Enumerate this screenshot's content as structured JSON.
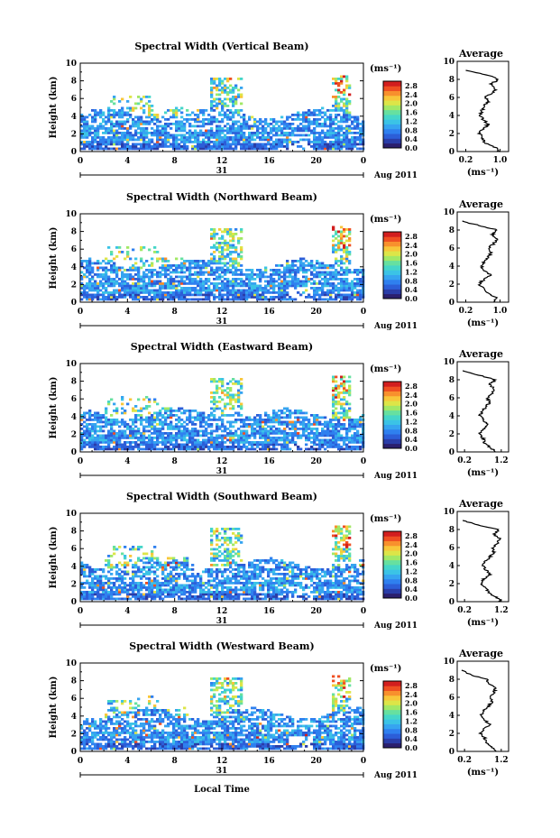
{
  "figure": {
    "xlabel": "Local Time",
    "date_label": "31",
    "month_year_label": "Aug 2011",
    "panel_ylabel": "Height (km)",
    "colorbar_unit": "(ms⁻¹)",
    "average_title": "Average",
    "average_xlabel": "(ms⁻¹)"
  },
  "chart_data": [
    {
      "type": "heatmap",
      "title": "Spectral Width (Vertical Beam)",
      "xlabel": "Local Time",
      "ylabel": "Height (km)",
      "x_ticks": [
        "0",
        "4",
        "8",
        "12",
        "16",
        "20",
        "0"
      ],
      "y_ticks": [
        "0",
        "2",
        "4",
        "6",
        "8",
        "10"
      ],
      "xlim": [
        0,
        24
      ],
      "ylim": [
        0,
        10
      ],
      "colorbar": {
        "label": "(ms⁻¹)",
        "ticks": [
          "0.0",
          "0.4",
          "0.8",
          "1.2",
          "1.6",
          "2.0",
          "2.4",
          "2.8"
        ],
        "range": [
          0,
          3.0
        ]
      },
      "average_profile": {
        "title": "Average",
        "xlabel": "(ms⁻¹)",
        "x_ticks": [
          "0.2",
          "1.0"
        ],
        "xlim": [
          0,
          1.2
        ],
        "heights": [
          0,
          0.5,
          1,
          1.5,
          2,
          2.5,
          3,
          3.5,
          4,
          4.5,
          5,
          5.5,
          6,
          6.5,
          7,
          7.5,
          8,
          8.5,
          9
        ],
        "values": [
          1.0,
          0.88,
          0.62,
          0.6,
          0.52,
          0.6,
          0.72,
          0.62,
          0.52,
          0.58,
          0.6,
          0.72,
          0.66,
          0.82,
          0.9,
          0.8,
          0.95,
          0.7,
          0.2
        ]
      }
    },
    {
      "type": "heatmap",
      "title": "Spectral Width (Northward Beam)",
      "xlabel": "Local Time",
      "ylabel": "Height (km)",
      "x_ticks": [
        "0",
        "4",
        "8",
        "12",
        "16",
        "20",
        "0"
      ],
      "y_ticks": [
        "0",
        "2",
        "4",
        "6",
        "8",
        "10"
      ],
      "xlim": [
        0,
        24
      ],
      "ylim": [
        0,
        10
      ],
      "colorbar": {
        "label": "(ms⁻¹)",
        "ticks": [
          "0.0",
          "0.4",
          "0.8",
          "1.2",
          "1.6",
          "2.0",
          "2.4",
          "2.8"
        ],
        "range": [
          0,
          3.0
        ]
      },
      "average_profile": {
        "title": "Average",
        "xlabel": "(ms⁻¹)",
        "x_ticks": [
          "0.2",
          "1.0"
        ],
        "xlim": [
          0,
          1.2
        ],
        "heights": [
          0,
          0.5,
          1,
          1.5,
          2,
          2.5,
          3,
          3.5,
          4,
          4.5,
          5,
          5.5,
          6,
          6.5,
          7,
          7.5,
          8,
          8.5,
          9
        ],
        "values": [
          0.85,
          0.95,
          0.7,
          0.62,
          0.5,
          0.62,
          0.8,
          0.65,
          0.55,
          0.62,
          0.72,
          0.8,
          0.75,
          0.85,
          0.95,
          0.82,
          0.95,
          0.5,
          0.12
        ]
      }
    },
    {
      "type": "heatmap",
      "title": "Spectral Width (Eastward Beam)",
      "xlabel": "Local Time",
      "ylabel": "Height (km)",
      "x_ticks": [
        "0",
        "4",
        "8",
        "12",
        "16",
        "20",
        "0"
      ],
      "y_ticks": [
        "0",
        "2",
        "4",
        "6",
        "8",
        "10"
      ],
      "xlim": [
        0,
        24
      ],
      "ylim": [
        0,
        10
      ],
      "colorbar": {
        "label": "(ms⁻¹)",
        "ticks": [
          "0.0",
          "0.4",
          "0.8",
          "1.2",
          "1.6",
          "2.0",
          "2.4",
          "2.8"
        ],
        "range": [
          0,
          3.0
        ]
      },
      "average_profile": {
        "title": "Average",
        "xlabel": "(ms⁻¹)",
        "x_ticks": [
          "0.2",
          "1.2"
        ],
        "xlim": [
          0,
          1.4
        ],
        "heights": [
          0,
          0.5,
          1,
          1.5,
          2,
          2.5,
          3,
          3.5,
          4,
          4.5,
          5,
          5.5,
          6,
          6.5,
          7,
          7.5,
          8,
          8.5,
          9
        ],
        "values": [
          1.05,
          0.9,
          0.75,
          0.72,
          0.6,
          0.7,
          0.85,
          0.72,
          0.62,
          0.68,
          0.78,
          0.88,
          0.82,
          0.95,
          1.0,
          0.88,
          1.05,
          0.6,
          0.15
        ]
      }
    },
    {
      "type": "heatmap",
      "title": "Spectral Width (Southward Beam)",
      "xlabel": "Local Time",
      "ylabel": "Height (km)",
      "x_ticks": [
        "0",
        "4",
        "8",
        "12",
        "16",
        "20",
        "0"
      ],
      "y_ticks": [
        "0",
        "2",
        "4",
        "6",
        "8",
        "10"
      ],
      "xlim": [
        0,
        24
      ],
      "ylim": [
        0,
        10
      ],
      "colorbar": {
        "label": "(ms⁻¹)",
        "ticks": [
          "0.0",
          "0.4",
          "0.8",
          "1.2",
          "1.6",
          "2.0",
          "2.4",
          "2.8"
        ],
        "range": [
          0,
          3.0
        ]
      },
      "average_profile": {
        "title": "Average",
        "xlabel": "(ms⁻¹)",
        "x_ticks": [
          "0.2",
          "1.2"
        ],
        "xlim": [
          0,
          1.4
        ],
        "heights": [
          0,
          0.5,
          1,
          1.5,
          2,
          2.5,
          3,
          3.5,
          4,
          4.5,
          5,
          5.5,
          6,
          6.5,
          7,
          7.5,
          8,
          8.5,
          9
        ],
        "values": [
          1.2,
          1.05,
          0.85,
          0.78,
          0.65,
          0.72,
          0.9,
          0.78,
          0.7,
          0.78,
          0.9,
          1.0,
          0.95,
          1.1,
          1.15,
          1.0,
          1.15,
          0.55,
          0.15
        ]
      }
    },
    {
      "type": "heatmap",
      "title": "Spectral Width (Westward Beam)",
      "xlabel": "Local Time",
      "ylabel": "Height (km)",
      "x_ticks": [
        "0",
        "4",
        "8",
        "12",
        "16",
        "20",
        "0"
      ],
      "y_ticks": [
        "0",
        "2",
        "4",
        "6",
        "8",
        "10"
      ],
      "xlim": [
        0,
        24
      ],
      "ylim": [
        0,
        10
      ],
      "colorbar": {
        "label": "(ms⁻¹)",
        "ticks": [
          "0.0",
          "0.4",
          "0.8",
          "1.2",
          "1.6",
          "2.0",
          "2.4",
          "2.8"
        ],
        "range": [
          0,
          3.0
        ]
      },
      "average_profile": {
        "title": "Average",
        "xlabel": "(ms⁻¹)",
        "x_ticks": [
          "0.2",
          "1.2"
        ],
        "xlim": [
          0,
          1.4
        ],
        "heights": [
          0,
          0.5,
          1,
          1.5,
          2,
          2.5,
          3,
          3.5,
          4,
          4.5,
          5,
          5.5,
          6,
          6.5,
          7,
          7.5,
          8,
          8.5,
          9
        ],
        "values": [
          1.05,
          0.95,
          0.8,
          0.75,
          0.62,
          0.72,
          0.88,
          0.75,
          0.66,
          0.72,
          0.85,
          0.95,
          0.9,
          1.0,
          1.05,
          0.85,
          0.8,
          0.35,
          0.12
        ]
      }
    }
  ]
}
